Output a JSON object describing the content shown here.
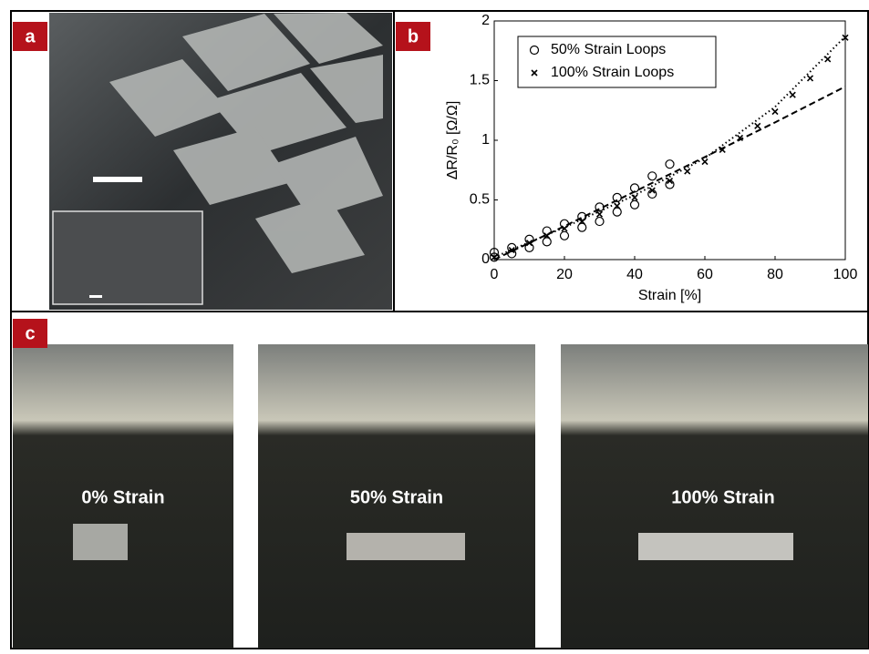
{
  "panels": {
    "a": {
      "label": "a"
    },
    "b": {
      "label": "b"
    },
    "c": {
      "label": "c",
      "photos": [
        "0% Strain",
        "50% Strain",
        "100% Strain"
      ]
    }
  },
  "chart_data": {
    "type": "scatter",
    "xlabel": "Strain [%]",
    "ylabel": "ΔR/R₀ [Ω/Ω]",
    "xlim": [
      0,
      100
    ],
    "ylim": [
      0,
      2
    ],
    "xticks": [
      0,
      20,
      40,
      60,
      80,
      100
    ],
    "yticks": [
      0,
      0.5,
      1,
      1.5,
      2
    ],
    "legend": "upper-left",
    "series": [
      {
        "name": "50% Strain Loops",
        "marker": "circle",
        "color": "#000000",
        "x": [
          0,
          0,
          5,
          5,
          10,
          10,
          15,
          15,
          20,
          20,
          25,
          25,
          30,
          30,
          35,
          35,
          40,
          40,
          45,
          45,
          50,
          50
        ],
        "values": [
          0.02,
          0.06,
          0.05,
          0.1,
          0.1,
          0.17,
          0.15,
          0.24,
          0.2,
          0.3,
          0.27,
          0.36,
          0.32,
          0.44,
          0.4,
          0.52,
          0.46,
          0.6,
          0.55,
          0.7,
          0.63,
          0.8
        ]
      },
      {
        "name": "100% Strain Loops",
        "marker": "cross",
        "color": "#000000",
        "x": [
          0,
          5,
          10,
          15,
          20,
          25,
          30,
          35,
          40,
          45,
          50,
          55,
          60,
          65,
          70,
          75,
          80,
          85,
          90,
          95,
          100
        ],
        "values": [
          0.02,
          0.08,
          0.14,
          0.2,
          0.26,
          0.32,
          0.38,
          0.45,
          0.52,
          0.58,
          0.66,
          0.74,
          0.82,
          0.92,
          1.02,
          1.12,
          1.24,
          1.38,
          1.52,
          1.68,
          1.86
        ]
      }
    ],
    "lines": [
      {
        "style": "dotted",
        "x": [
          0,
          20,
          40,
          60,
          80,
          100
        ],
        "values": [
          0.02,
          0.27,
          0.54,
          0.85,
          1.28,
          1.87
        ]
      },
      {
        "style": "dashed",
        "x": [
          0,
          20,
          40,
          60,
          80,
          100
        ],
        "values": [
          0,
          0.28,
          0.57,
          0.86,
          1.15,
          1.45
        ]
      }
    ]
  }
}
